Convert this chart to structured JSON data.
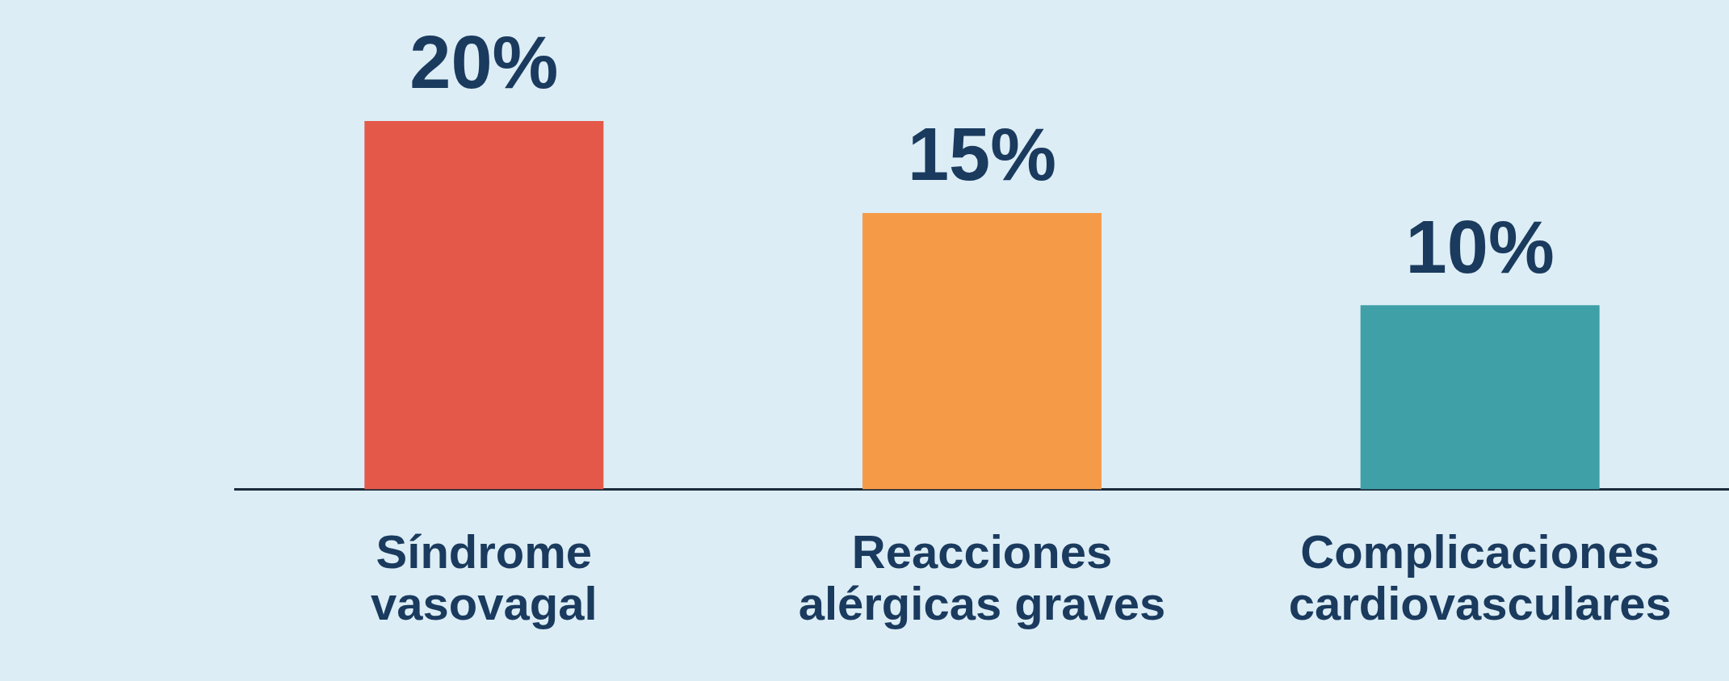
{
  "chart_data": {
    "type": "bar",
    "categories": [
      "Síndrome vasovagal",
      "Reacciones alérgicas graves",
      "Complicaciones cardiovasculares"
    ],
    "values": [
      20,
      15,
      10
    ],
    "colors": [
      "#e4584a",
      "#f59b48",
      "#40a0a8"
    ],
    "value_labels": [
      "20%",
      "15%",
      "10%"
    ],
    "grid": false,
    "legend": false
  }
}
